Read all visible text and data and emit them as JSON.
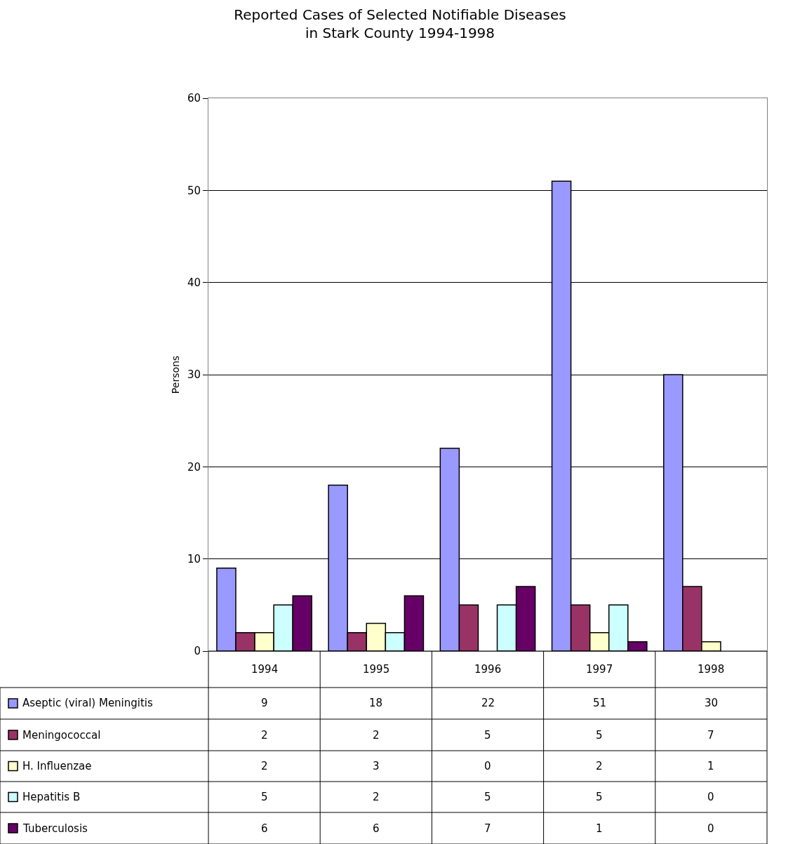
{
  "chart_data": {
    "type": "bar",
    "title": "Reported Cases of Selected Notifiable Diseases in Stark County 1994-1998",
    "ylabel": "Persons",
    "categories": [
      "1994",
      "1995",
      "1996",
      "1997",
      "1998"
    ],
    "series": [
      {
        "name": "Aseptic (viral) Meningitis",
        "color": "#9999ff",
        "values": [
          9,
          18,
          22,
          51,
          30
        ]
      },
      {
        "name": "Meningococcal",
        "color": "#993366",
        "values": [
          2,
          2,
          5,
          5,
          7
        ]
      },
      {
        "name": "H. Influenzae",
        "color": "#ffffcc",
        "values": [
          2,
          3,
          0,
          2,
          1
        ]
      },
      {
        "name": "Hepatitis B",
        "color": "#ccffff",
        "values": [
          5,
          2,
          5,
          5,
          0
        ]
      },
      {
        "name": "Tuberculosis",
        "color": "#660066",
        "values": [
          6,
          6,
          7,
          1,
          0
        ]
      }
    ],
    "ylim": [
      0,
      60
    ],
    "yticks": [
      0,
      10,
      20,
      30,
      40,
      50,
      60
    ],
    "grid": "y",
    "data_labels": true,
    "legend": "bottom left"
  }
}
